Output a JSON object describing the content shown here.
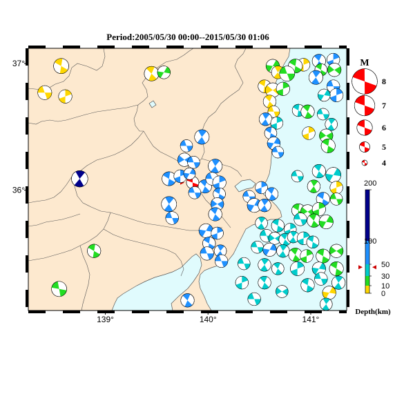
{
  "title": "Period:2005/05/30 00:00--2015/05/30 01:06",
  "map": {
    "lon_min": 138.25,
    "lon_max": 141.35,
    "lat_min": 35.05,
    "lat_max": 37.12,
    "x_ticks": [
      {
        "value": 139,
        "label": "139°"
      },
      {
        "value": 140,
        "label": "140°"
      },
      {
        "value": 141,
        "label": "141°"
      }
    ],
    "y_ticks": [
      {
        "value": 36,
        "label": "36°"
      },
      {
        "value": 37,
        "label": "37°"
      }
    ],
    "land_color": "#fde9cf",
    "sea_color": "#e0fbfd"
  },
  "magnitude_legend": {
    "title": "M",
    "items": [
      {
        "mag": 8,
        "label": "8"
      },
      {
        "mag": 7,
        "label": "7"
      },
      {
        "mag": 6,
        "label": "6"
      },
      {
        "mag": 5,
        "label": "5"
      },
      {
        "mag": 4,
        "label": "4"
      }
    ],
    "color": "#ff0000"
  },
  "depth_legend": {
    "title": "Depth(km)",
    "max": 200,
    "ticks": [
      {
        "value": 200,
        "label": "200"
      },
      {
        "value": 100,
        "label": "100"
      },
      {
        "value": 50,
        "label": "50"
      },
      {
        "value": 30,
        "label": "30"
      },
      {
        "value": 10,
        "label": "10"
      },
      {
        "value": 0,
        "label": "0"
      }
    ],
    "bands": [
      {
        "from": 0,
        "to": 10,
        "color": "#ffd700"
      },
      {
        "from": 10,
        "to": 30,
        "color": "#22dd22"
      },
      {
        "from": 30,
        "to": 50,
        "color": "#00cccc"
      },
      {
        "from": 50,
        "to": 100,
        "color": "#1e90ff"
      },
      {
        "from": 100,
        "to": 200,
        "color": "#00008b"
      }
    ],
    "marker_depth": 45
  },
  "chart_data": {
    "type": "scatter",
    "title": "Period:2005/05/30 00:00--2015/05/30 01:06",
    "xlabel": "",
    "ylabel": "",
    "x_range": [
      138.25,
      141.35
    ],
    "y_range": [
      35.05,
      37.12
    ],
    "events": [
      {
        "lon": 139.85,
        "lat": 36.06,
        "mag": 5.3,
        "depth": 45,
        "color": "#ff0000",
        "rot": 20,
        "highlight": true
      },
      {
        "lon": 138.75,
        "lat": 36.09,
        "mag": 4.8,
        "depth": 150,
        "color": "#00008b",
        "rot": 60
      },
      {
        "lon": 138.57,
        "lat": 36.98,
        "mag": 4.6,
        "depth": 5,
        "color": "#ffd700",
        "rot": 30
      },
      {
        "lon": 138.41,
        "lat": 36.77,
        "mag": 4.4,
        "depth": 5,
        "color": "#ffd700",
        "rot": 0
      },
      {
        "lon": 138.61,
        "lat": 36.74,
        "mag": 4.3,
        "depth": 5,
        "color": "#ffd700",
        "rot": 90
      },
      {
        "lon": 139.45,
        "lat": 36.92,
        "mag": 4.5,
        "depth": 5,
        "color": "#ffd700",
        "rot": 45
      },
      {
        "lon": 139.57,
        "lat": 36.93,
        "mag": 4.2,
        "depth": 20,
        "color": "#22dd22",
        "rot": 120
      },
      {
        "lon": 138.89,
        "lat": 35.52,
        "mag": 4.3,
        "depth": 20,
        "color": "#22dd22",
        "rot": 30
      },
      {
        "lon": 138.55,
        "lat": 35.22,
        "mag": 4.6,
        "depth": 20,
        "color": "#22dd22",
        "rot": 10
      },
      {
        "lon": 139.79,
        "lat": 36.35,
        "mag": 4.1,
        "depth": 70,
        "color": "#1e90ff",
        "rot": 0
      },
      {
        "lon": 139.94,
        "lat": 36.42,
        "mag": 4.5,
        "depth": 70,
        "color": "#1e90ff",
        "rot": 60
      },
      {
        "lon": 139.77,
        "lat": 36.24,
        "mag": 4.3,
        "depth": 70,
        "color": "#1e90ff",
        "rot": 150
      },
      {
        "lon": 139.86,
        "lat": 36.22,
        "mag": 4.1,
        "depth": 70,
        "color": "#1e90ff",
        "rot": 0
      },
      {
        "lon": 139.62,
        "lat": 36.09,
        "mag": 4.4,
        "depth": 70,
        "color": "#1e90ff",
        "rot": 30
      },
      {
        "lon": 139.73,
        "lat": 36.11,
        "mag": 4.2,
        "depth": 70,
        "color": "#1e90ff",
        "rot": 90
      },
      {
        "lon": 139.82,
        "lat": 36.13,
        "mag": 4.0,
        "depth": 70,
        "color": "#1e90ff",
        "rot": 120
      },
      {
        "lon": 139.97,
        "lat": 36.03,
        "mag": 4.3,
        "depth": 70,
        "color": "#1e90ff",
        "rot": 45
      },
      {
        "lon": 139.87,
        "lat": 35.98,
        "mag": 4.1,
        "depth": 70,
        "color": "#1e90ff",
        "rot": 180
      },
      {
        "lon": 140.07,
        "lat": 36.19,
        "mag": 4.4,
        "depth": 70,
        "color": "#1e90ff",
        "rot": 60
      },
      {
        "lon": 140.04,
        "lat": 36.09,
        "mag": 4.2,
        "depth": 70,
        "color": "#1e90ff",
        "rot": 0
      },
      {
        "lon": 140.11,
        "lat": 36.06,
        "mag": 4.3,
        "depth": 70,
        "color": "#1e90ff",
        "rot": 90
      },
      {
        "lon": 140.11,
        "lat": 35.97,
        "mag": 4.1,
        "depth": 70,
        "color": "#1e90ff",
        "rot": 30
      },
      {
        "lon": 140.09,
        "lat": 35.89,
        "mag": 4.2,
        "depth": 70,
        "color": "#1e90ff",
        "rot": 150
      },
      {
        "lon": 140.07,
        "lat": 35.81,
        "mag": 4.3,
        "depth": 70,
        "color": "#1e90ff",
        "rot": 45
      },
      {
        "lon": 139.62,
        "lat": 35.89,
        "mag": 4.6,
        "depth": 70,
        "color": "#1e90ff",
        "rot": 60
      },
      {
        "lon": 139.65,
        "lat": 35.78,
        "mag": 4.2,
        "depth": 70,
        "color": "#1e90ff",
        "rot": 0
      },
      {
        "lon": 139.98,
        "lat": 35.68,
        "mag": 4.4,
        "depth": 70,
        "color": "#1e90ff",
        "rot": 120
      },
      {
        "lon": 140.09,
        "lat": 35.66,
        "mag": 4.1,
        "depth": 70,
        "color": "#1e90ff",
        "rot": 90
      },
      {
        "lon": 140.01,
        "lat": 35.58,
        "mag": 4.2,
        "depth": 70,
        "color": "#1e90ff",
        "rot": 30
      },
      {
        "lon": 139.99,
        "lat": 35.5,
        "mag": 4.3,
        "depth": 70,
        "color": "#1e90ff",
        "rot": 180
      },
      {
        "lon": 140.12,
        "lat": 35.52,
        "mag": 4.1,
        "depth": 70,
        "color": "#1e90ff",
        "rot": 60
      },
      {
        "lon": 140.13,
        "lat": 35.44,
        "mag": 4.2,
        "depth": 70,
        "color": "#1e90ff",
        "rot": 0
      },
      {
        "lon": 139.8,
        "lat": 35.13,
        "mag": 4.3,
        "depth": 70,
        "color": "#1e90ff",
        "rot": 45
      },
      {
        "lon": 140.93,
        "lat": 36.99,
        "mag": 4.2,
        "depth": 5,
        "color": "#ffd700",
        "rot": 90
      },
      {
        "lon": 140.85,
        "lat": 36.98,
        "mag": 4.4,
        "depth": 20,
        "color": "#22dd22",
        "rot": 30
      },
      {
        "lon": 140.63,
        "lat": 36.98,
        "mag": 4.3,
        "depth": 20,
        "color": "#22dd22",
        "rot": 120
      },
      {
        "lon": 140.68,
        "lat": 36.93,
        "mag": 4.2,
        "depth": 5,
        "color": "#ffd700",
        "rot": 60
      },
      {
        "lon": 140.77,
        "lat": 36.92,
        "mag": 4.6,
        "depth": 20,
        "color": "#22dd22",
        "rot": 0
      },
      {
        "lon": 140.55,
        "lat": 36.82,
        "mag": 4.2,
        "depth": 5,
        "color": "#ffd700",
        "rot": 30
      },
      {
        "lon": 140.63,
        "lat": 36.79,
        "mag": 4.5,
        "depth": 5,
        "color": "#ffd700",
        "rot": 150
      },
      {
        "lon": 140.73,
        "lat": 36.8,
        "mag": 4.3,
        "depth": 20,
        "color": "#22dd22",
        "rot": 90
      },
      {
        "lon": 140.6,
        "lat": 36.7,
        "mag": 4.2,
        "depth": 5,
        "color": "#ffd700",
        "rot": 45
      },
      {
        "lon": 140.64,
        "lat": 36.62,
        "mag": 4.0,
        "depth": 5,
        "color": "#ffd700",
        "rot": 0
      },
      {
        "lon": 140.56,
        "lat": 36.56,
        "mag": 4.2,
        "depth": 70,
        "color": "#1e90ff",
        "rot": 60
      },
      {
        "lon": 140.67,
        "lat": 36.53,
        "mag": 4.1,
        "depth": 40,
        "color": "#00cccc",
        "rot": 90
      },
      {
        "lon": 140.61,
        "lat": 36.45,
        "mag": 4.1,
        "depth": 70,
        "color": "#1e90ff",
        "rot": 30
      },
      {
        "lon": 140.64,
        "lat": 36.37,
        "mag": 4.2,
        "depth": 70,
        "color": "#1e90ff",
        "rot": 120
      },
      {
        "lon": 140.68,
        "lat": 36.3,
        "mag": 4.0,
        "depth": 70,
        "color": "#1e90ff",
        "rot": 0
      },
      {
        "lon": 141.08,
        "lat": 37.02,
        "mag": 4.3,
        "depth": 70,
        "color": "#1e90ff",
        "rot": 45
      },
      {
        "lon": 141.22,
        "lat": 37.03,
        "mag": 4.2,
        "depth": 70,
        "color": "#1e90ff",
        "rot": 90
      },
      {
        "lon": 141.1,
        "lat": 36.95,
        "mag": 4.1,
        "depth": 20,
        "color": "#22dd22",
        "rot": 30
      },
      {
        "lon": 141.23,
        "lat": 36.95,
        "mag": 4.3,
        "depth": 20,
        "color": "#22dd22",
        "rot": 150
      },
      {
        "lon": 141.05,
        "lat": 36.89,
        "mag": 4.4,
        "depth": 70,
        "color": "#1e90ff",
        "rot": 60
      },
      {
        "lon": 141.22,
        "lat": 36.82,
        "mag": 4.2,
        "depth": 70,
        "color": "#1e90ff",
        "rot": 0
      },
      {
        "lon": 141.25,
        "lat": 36.75,
        "mag": 4.3,
        "depth": 70,
        "color": "#1e90ff",
        "rot": 90
      },
      {
        "lon": 141.13,
        "lat": 36.75,
        "mag": 4.1,
        "depth": 40,
        "color": "#00cccc",
        "rot": 120
      },
      {
        "lon": 140.88,
        "lat": 36.63,
        "mag": 4.1,
        "depth": 40,
        "color": "#00cccc",
        "rot": 30
      },
      {
        "lon": 140.97,
        "lat": 36.62,
        "mag": 4.3,
        "depth": 20,
        "color": "#22dd22",
        "rot": 45
      },
      {
        "lon": 141.12,
        "lat": 36.6,
        "mag": 4.0,
        "depth": 40,
        "color": "#00cccc",
        "rot": 0
      },
      {
        "lon": 141.2,
        "lat": 36.52,
        "mag": 4.1,
        "depth": 40,
        "color": "#00cccc",
        "rot": 60
      },
      {
        "lon": 140.98,
        "lat": 36.45,
        "mag": 4.2,
        "depth": 5,
        "color": "#ffd700",
        "rot": 90
      },
      {
        "lon": 141.15,
        "lat": 36.43,
        "mag": 4.3,
        "depth": 20,
        "color": "#22dd22",
        "rot": 150
      },
      {
        "lon": 141.17,
        "lat": 36.35,
        "mag": 4.4,
        "depth": 20,
        "color": "#22dd22",
        "rot": 30
      },
      {
        "lon": 140.87,
        "lat": 36.11,
        "mag": 4.0,
        "depth": 40,
        "color": "#00cccc",
        "rot": 0
      },
      {
        "lon": 141.08,
        "lat": 36.15,
        "mag": 4.3,
        "depth": 40,
        "color": "#00cccc",
        "rot": 45
      },
      {
        "lon": 141.22,
        "lat": 36.12,
        "mag": 4.6,
        "depth": 40,
        "color": "#00cccc",
        "rot": 120
      },
      {
        "lon": 141.25,
        "lat": 36.02,
        "mag": 4.2,
        "depth": 5,
        "color": "#ffd700",
        "rot": 90
      },
      {
        "lon": 141.03,
        "lat": 36.03,
        "mag": 4.2,
        "depth": 20,
        "color": "#22dd22",
        "rot": 60
      },
      {
        "lon": 141.25,
        "lat": 35.93,
        "mag": 4.1,
        "depth": 20,
        "color": "#22dd22",
        "rot": 0
      },
      {
        "lon": 141.12,
        "lat": 35.93,
        "mag": 4.3,
        "depth": 70,
        "color": "#1e90ff",
        "rot": 30
      },
      {
        "lon": 140.52,
        "lat": 36.02,
        "mag": 4.1,
        "depth": 70,
        "color": "#1e90ff",
        "rot": 90
      },
      {
        "lon": 140.62,
        "lat": 35.97,
        "mag": 4.2,
        "depth": 70,
        "color": "#1e90ff",
        "rot": 45
      },
      {
        "lon": 140.4,
        "lat": 35.95,
        "mag": 4.1,
        "depth": 70,
        "color": "#1e90ff",
        "rot": 0
      },
      {
        "lon": 140.45,
        "lat": 35.88,
        "mag": 4.4,
        "depth": 70,
        "color": "#1e90ff",
        "rot": 120
      },
      {
        "lon": 140.55,
        "lat": 35.88,
        "mag": 4.2,
        "depth": 70,
        "color": "#1e90ff",
        "rot": 60
      },
      {
        "lon": 140.88,
        "lat": 35.84,
        "mag": 4.3,
        "depth": 20,
        "color": "#22dd22",
        "rot": 30
      },
      {
        "lon": 140.97,
        "lat": 35.83,
        "mag": 4.4,
        "depth": 20,
        "color": "#22dd22",
        "rot": 150
      },
      {
        "lon": 141.08,
        "lat": 35.85,
        "mag": 4.3,
        "depth": 20,
        "color": "#22dd22",
        "rot": 90
      },
      {
        "lon": 140.9,
        "lat": 35.77,
        "mag": 4.2,
        "depth": 40,
        "color": "#00cccc",
        "rot": 0
      },
      {
        "lon": 141.03,
        "lat": 35.76,
        "mag": 4.3,
        "depth": 20,
        "color": "#22dd22",
        "rot": 45
      },
      {
        "lon": 141.15,
        "lat": 35.75,
        "mag": 4.4,
        "depth": 20,
        "color": "#22dd22",
        "rot": 120
      },
      {
        "lon": 140.52,
        "lat": 35.74,
        "mag": 4.1,
        "depth": 40,
        "color": "#00cccc",
        "rot": 60
      },
      {
        "lon": 140.68,
        "lat": 35.72,
        "mag": 4.2,
        "depth": 40,
        "color": "#00cccc",
        "rot": 30
      },
      {
        "lon": 140.8,
        "lat": 35.69,
        "mag": 4.1,
        "depth": 40,
        "color": "#00cccc",
        "rot": 90
      },
      {
        "lon": 140.57,
        "lat": 35.64,
        "mag": 4.2,
        "depth": 40,
        "color": "#00cccc",
        "rot": 0
      },
      {
        "lon": 140.65,
        "lat": 35.62,
        "mag": 4.1,
        "depth": 40,
        "color": "#00cccc",
        "rot": 150
      },
      {
        "lon": 140.75,
        "lat": 35.61,
        "mag": 4.1,
        "depth": 40,
        "color": "#00cccc",
        "rot": 45
      },
      {
        "lon": 140.83,
        "lat": 35.63,
        "mag": 4.0,
        "depth": 40,
        "color": "#00cccc",
        "rot": 60
      },
      {
        "lon": 140.93,
        "lat": 35.62,
        "mag": 4.2,
        "depth": 40,
        "color": "#00cccc",
        "rot": 90
      },
      {
        "lon": 141.02,
        "lat": 35.59,
        "mag": 4.1,
        "depth": 40,
        "color": "#00cccc",
        "rot": 30
      },
      {
        "lon": 140.48,
        "lat": 35.55,
        "mag": 4.1,
        "depth": 40,
        "color": "#00cccc",
        "rot": 0
      },
      {
        "lon": 140.6,
        "lat": 35.53,
        "mag": 4.3,
        "depth": 70,
        "color": "#1e90ff",
        "rot": 120
      },
      {
        "lon": 140.73,
        "lat": 35.52,
        "mag": 4.2,
        "depth": 40,
        "color": "#00cccc",
        "rot": 60
      },
      {
        "lon": 140.85,
        "lat": 35.49,
        "mag": 4.3,
        "depth": 20,
        "color": "#22dd22",
        "rot": 45
      },
      {
        "lon": 140.96,
        "lat": 35.48,
        "mag": 4.2,
        "depth": 20,
        "color": "#22dd22",
        "rot": 90
      },
      {
        "lon": 141.12,
        "lat": 35.48,
        "mag": 4.4,
        "depth": 20,
        "color": "#22dd22",
        "rot": 30
      },
      {
        "lon": 141.25,
        "lat": 35.52,
        "mag": 4.3,
        "depth": 20,
        "color": "#22dd22",
        "rot": 150
      },
      {
        "lon": 140.35,
        "lat": 35.42,
        "mag": 4.1,
        "depth": 40,
        "color": "#00cccc",
        "rot": 0
      },
      {
        "lon": 140.55,
        "lat": 35.41,
        "mag": 4.2,
        "depth": 40,
        "color": "#00cccc",
        "rot": 60
      },
      {
        "lon": 140.68,
        "lat": 35.38,
        "mag": 4.1,
        "depth": 40,
        "color": "#00cccc",
        "rot": 45
      },
      {
        "lon": 140.87,
        "lat": 35.38,
        "mag": 4.4,
        "depth": 40,
        "color": "#00cccc",
        "rot": 90
      },
      {
        "lon": 141.08,
        "lat": 35.38,
        "mag": 4.3,
        "depth": 40,
        "color": "#00cccc",
        "rot": 120
      },
      {
        "lon": 141.25,
        "lat": 35.38,
        "mag": 4.4,
        "depth": 20,
        "color": "#22dd22",
        "rot": 30
      },
      {
        "lon": 141.1,
        "lat": 35.3,
        "mag": 4.2,
        "depth": 40,
        "color": "#00cccc",
        "rot": 0
      },
      {
        "lon": 141.27,
        "lat": 35.27,
        "mag": 4.3,
        "depth": 40,
        "color": "#00cccc",
        "rot": 60
      },
      {
        "lon": 140.33,
        "lat": 35.27,
        "mag": 4.2,
        "depth": 40,
        "color": "#00cccc",
        "rot": 90
      },
      {
        "lon": 140.55,
        "lat": 35.27,
        "mag": 4.2,
        "depth": 40,
        "color": "#00cccc",
        "rot": 45
      },
      {
        "lon": 140.72,
        "lat": 35.2,
        "mag": 4.1,
        "depth": 40,
        "color": "#00cccc",
        "rot": 150
      },
      {
        "lon": 140.97,
        "lat": 35.25,
        "mag": 4.3,
        "depth": 40,
        "color": "#00cccc",
        "rot": 30
      },
      {
        "lon": 140.45,
        "lat": 35.14,
        "mag": 4.2,
        "depth": 40,
        "color": "#00cccc",
        "rot": 0
      },
      {
        "lon": 141.18,
        "lat": 35.19,
        "mag": 4.3,
        "depth": 5,
        "color": "#ffd700",
        "rot": 120
      },
      {
        "lon": 141.15,
        "lat": 35.1,
        "mag": 4.1,
        "depth": 40,
        "color": "#00cccc",
        "rot": 60
      }
    ]
  }
}
